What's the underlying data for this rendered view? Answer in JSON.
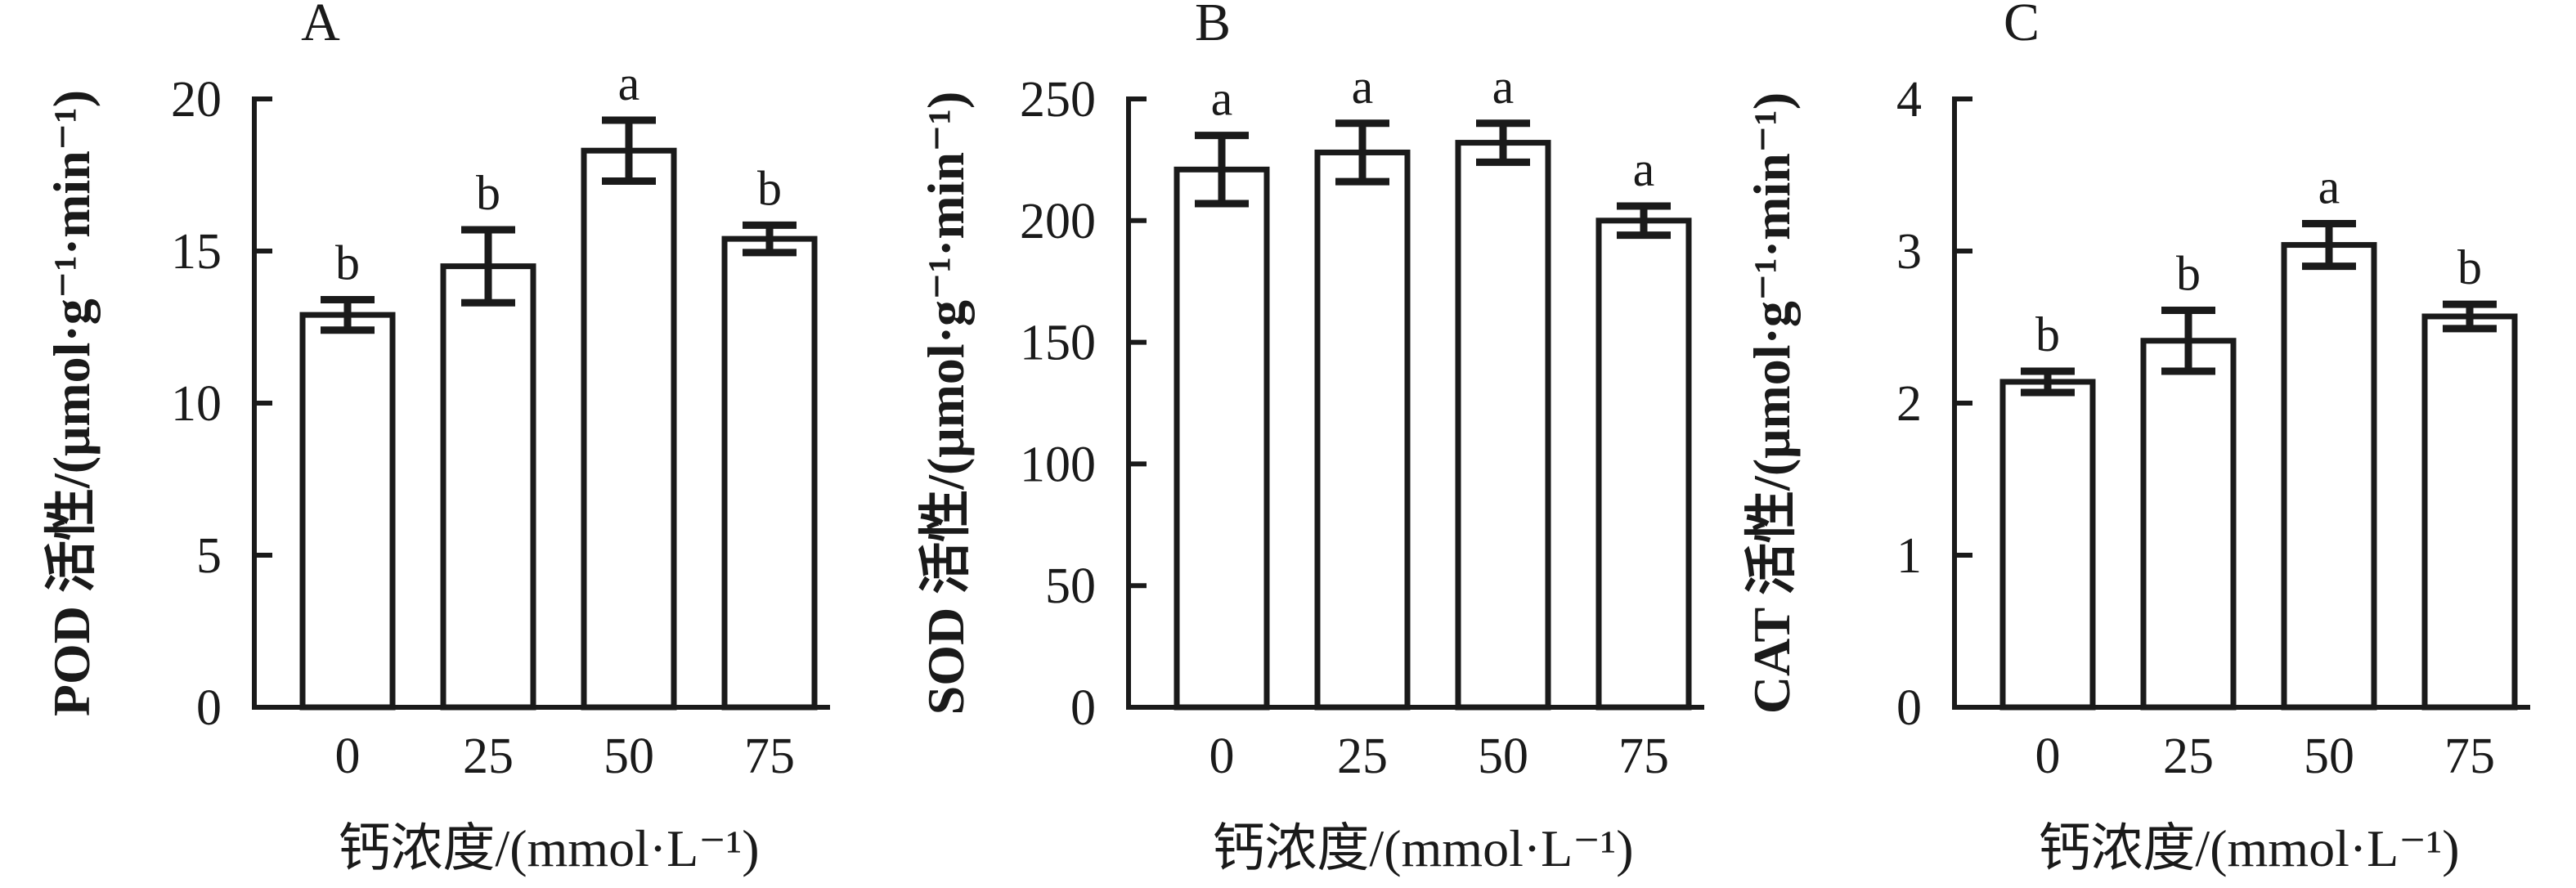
{
  "figure": {
    "background": "#ffffff",
    "line_color": "#1a1a1a",
    "bar_fill": "#ffffff"
  },
  "chart_data": [
    {
      "type": "bar",
      "panel_label": "A",
      "title": "",
      "ylabel": "POD 活性/(μmol·g⁻¹·min⁻¹)",
      "xlabel": "钙浓度/(mmol·L⁻¹)",
      "categories": [
        "0",
        "25",
        "50",
        "75"
      ],
      "values": [
        12.9,
        14.5,
        18.3,
        15.4
      ],
      "errors": [
        0.5,
        1.2,
        1.0,
        0.45
      ],
      "sig_letters": [
        "b",
        "b",
        "a",
        "b"
      ],
      "ylim": [
        0,
        20
      ],
      "yticks": [
        0,
        5,
        10,
        15,
        20
      ],
      "grid": false,
      "legend": "none"
    },
    {
      "type": "bar",
      "panel_label": "B",
      "title": "",
      "ylabel": "SOD 活性/(μmol·g⁻¹·min⁻¹)",
      "xlabel": "钙浓度/(mmol·L⁻¹)",
      "categories": [
        "0",
        "25",
        "50",
        "75"
      ],
      "values": [
        221,
        228,
        232,
        200
      ],
      "errors": [
        14,
        12,
        8,
        6
      ],
      "sig_letters": [
        "a",
        "a",
        "a",
        "a"
      ],
      "ylim": [
        0,
        250
      ],
      "yticks": [
        0,
        50,
        100,
        150,
        200,
        250
      ],
      "grid": false,
      "legend": "none"
    },
    {
      "type": "bar",
      "panel_label": "C",
      "title": "",
      "ylabel": "CAT 活性/(μmol·g⁻¹·min⁻¹)",
      "xlabel": "钙浓度/(mmol·L⁻¹)",
      "categories": [
        "0",
        "25",
        "50",
        "75"
      ],
      "values": [
        2.14,
        2.41,
        3.04,
        2.57
      ],
      "errors": [
        0.07,
        0.2,
        0.14,
        0.08
      ],
      "sig_letters": [
        "b",
        "b",
        "a",
        "b"
      ],
      "ylim": [
        0,
        4
      ],
      "yticks": [
        0,
        1,
        2,
        3,
        4
      ],
      "grid": false,
      "legend": "none"
    }
  ]
}
